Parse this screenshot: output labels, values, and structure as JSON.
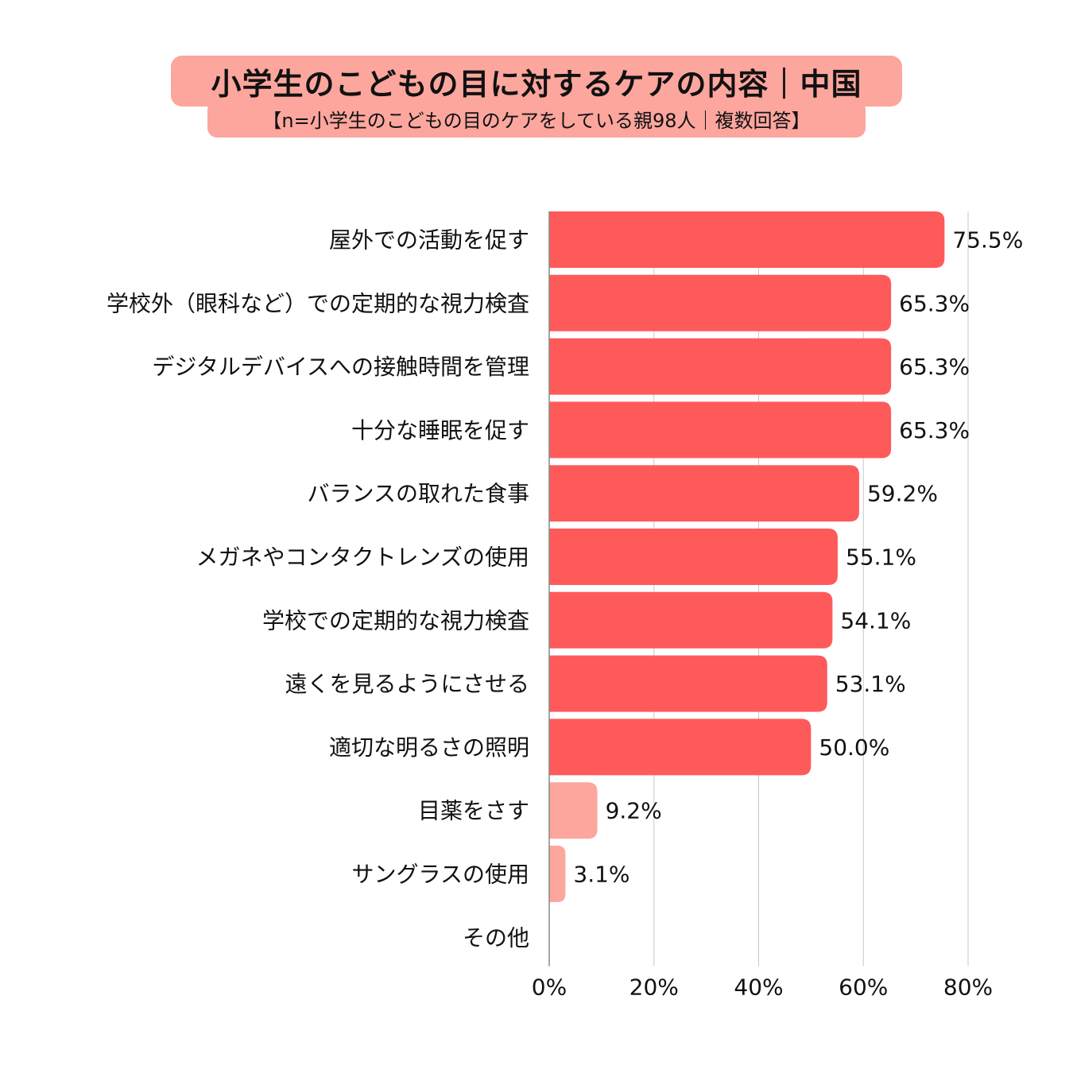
{
  "chart_data": {
    "type": "bar",
    "orientation": "horizontal",
    "title": "小学生のこどもの目に対するケアの内容｜中国",
    "subtitle": "【n=小学生のこどもの目のケアをしている親98人｜複数回答】",
    "categories": [
      "屋外での活動を促す",
      "学校外（眼科など）での定期的な視力検査",
      "デジタルデバイスへの接触時間を管理",
      "十分な睡眠を促す",
      "バランスの取れた食事",
      "メガネやコンタクトレンズの使用",
      "学校での定期的な視力検査",
      "遠くを見るようにさせる",
      "適切な明るさの照明",
      "目薬をさす",
      "サングラスの使用",
      "その他"
    ],
    "values": [
      75.5,
      65.3,
      65.3,
      65.3,
      59.2,
      55.1,
      54.1,
      53.1,
      50.0,
      9.2,
      3.1,
      0
    ],
    "value_labels": [
      "75.5%",
      "65.3%",
      "65.3%",
      "65.3%",
      "59.2%",
      "55.1%",
      "54.1%",
      "53.1%",
      "50.0%",
      "9.2%",
      "3.1%",
      ""
    ],
    "xlim": [
      0,
      80
    ],
    "xticks": [
      "0%",
      "20%",
      "40%",
      "60%",
      "80%"
    ],
    "grid": true,
    "colors": {
      "high": "#ff5a5a",
      "low": "#fca69e",
      "title_bg": "#fca69e",
      "grid": "#c8c8c8",
      "axis": "#888888"
    }
  }
}
